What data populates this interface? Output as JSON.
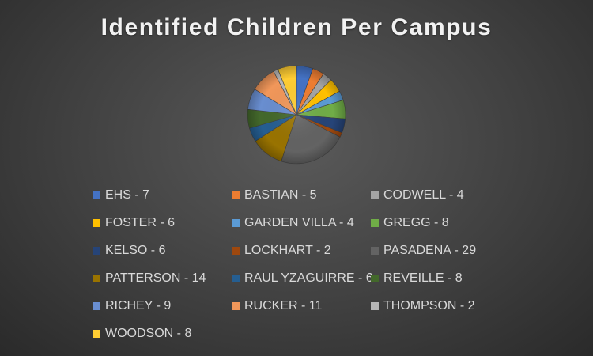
{
  "chart_data": {
    "type": "pie",
    "title": "Identified Children Per Campus",
    "legend_position": "bottom",
    "categories": [
      "EHS",
      "BASTIAN",
      "CODWELL",
      "FOSTER",
      "GARDEN VILLA",
      "GREGG",
      "KELSO",
      "LOCKHART",
      "PASADENA",
      "PATTERSON",
      "RAUL YZAGUIRRE",
      "REVEILLE",
      "RICHEY",
      "RUCKER",
      "THOMPSON",
      "WOODSON"
    ],
    "values": [
      7,
      5,
      4,
      6,
      4,
      8,
      6,
      2,
      29,
      14,
      6,
      8,
      9,
      11,
      2,
      8
    ],
    "legend_labels": [
      "EHS - 7",
      "BASTIAN - 5",
      "CODWELL - 4",
      "FOSTER - 6",
      "GARDEN VILLA - 4",
      "GREGG - 8",
      "KELSO - 6",
      "LOCKHART - 2",
      "PASADENA - 29",
      "PATTERSON - 14",
      "RAUL YZAGUIRRE - 6",
      "REVEILLE - 8",
      "RICHEY - 9",
      "RUCKER - 11",
      "THOMPSON - 2",
      "WOODSON - 8"
    ],
    "colors": [
      "#4472c4",
      "#ed7d31",
      "#a5a5a5",
      "#ffc000",
      "#5b9bd5",
      "#70ad47",
      "#264478",
      "#9e480e",
      "#636363",
      "#997300",
      "#255e91",
      "#43682b",
      "#698ed0",
      "#f1975a",
      "#b7b7b7",
      "#ffcd33"
    ]
  }
}
